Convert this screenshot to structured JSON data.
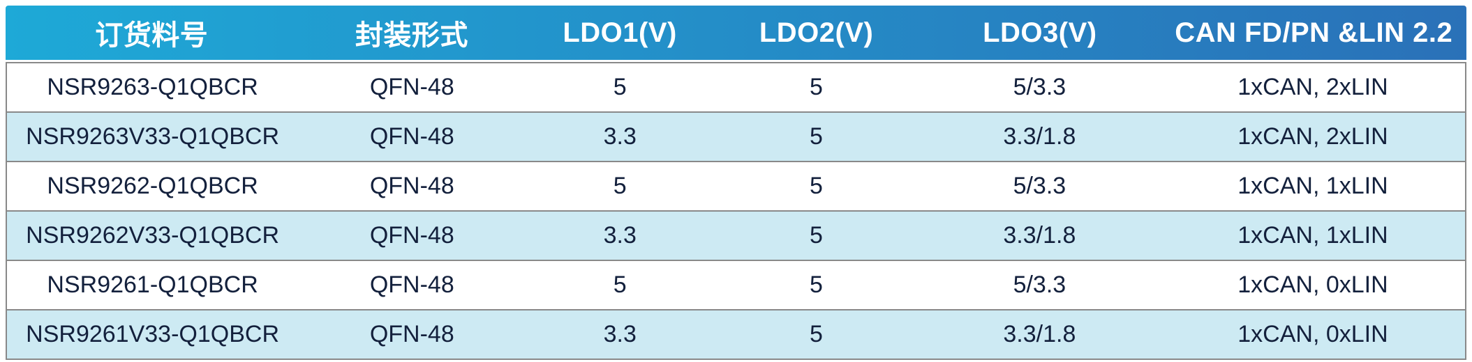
{
  "table": {
    "columns": [
      "订货料号",
      "封装形式",
      "LDO1(V)",
      "LDO2(V)",
      "LDO3(V)",
      "CAN FD/PN &LIN 2.2"
    ],
    "rows": [
      [
        "NSR9263-Q1QBCR",
        "QFN-48",
        "5",
        "5",
        "5/3.3",
        "1xCAN, 2xLIN"
      ],
      [
        "NSR9263V33-Q1QBCR",
        "QFN-48",
        "3.3",
        "5",
        "3.3/1.8",
        "1xCAN, 2xLIN"
      ],
      [
        "NSR9262-Q1QBCR",
        "QFN-48",
        "5",
        "5",
        "5/3.3",
        "1xCAN, 1xLIN"
      ],
      [
        "NSR9262V33-Q1QBCR",
        "QFN-48",
        "3.3",
        "5",
        "3.3/1.8",
        "1xCAN, 1xLIN"
      ],
      [
        "NSR9261-Q1QBCR",
        "QFN-48",
        "5",
        "5",
        "5/3.3",
        "1xCAN, 0xLIN"
      ],
      [
        "NSR9261V33-Q1QBCR",
        "QFN-48",
        "3.3",
        "5",
        "3.3/1.8",
        "1xCAN, 0xLIN"
      ]
    ]
  },
  "colors": {
    "header_gradient_start": "#1ea9d7",
    "header_gradient_end": "#2a71b8",
    "header_text": "#ffffff",
    "row_even_bg": "#ffffff",
    "row_odd_bg": "#cdeaf3",
    "row_border": "#898989",
    "cell_text": "#13203c"
  }
}
